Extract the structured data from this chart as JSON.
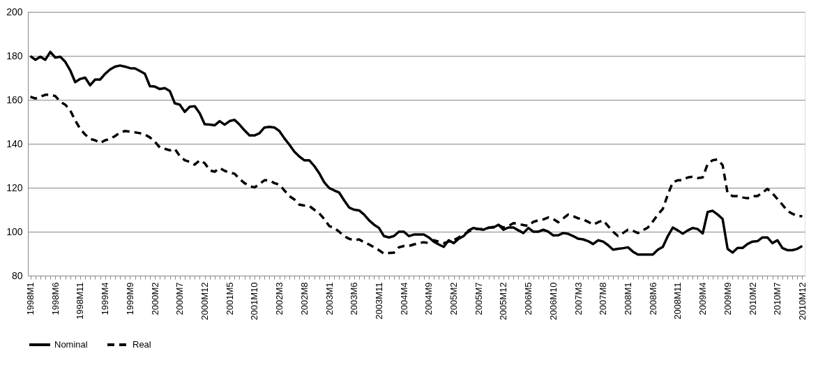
{
  "chart_data": {
    "type": "line",
    "categories": [
      "1998M1",
      null,
      null,
      null,
      null,
      "1998M6",
      null,
      null,
      null,
      null,
      "1998M11",
      null,
      null,
      null,
      null,
      "1999M4",
      null,
      null,
      null,
      null,
      "1999M9",
      null,
      null,
      null,
      null,
      "2000M2",
      null,
      null,
      null,
      null,
      "2000M7",
      null,
      null,
      null,
      null,
      "2000M12",
      null,
      null,
      null,
      null,
      "2001M5",
      null,
      null,
      null,
      null,
      "2001M10",
      null,
      null,
      null,
      null,
      "2002M3",
      null,
      null,
      null,
      null,
      "2002M8",
      null,
      null,
      null,
      null,
      "2003M1",
      null,
      null,
      null,
      null,
      "2003M6",
      null,
      null,
      null,
      null,
      "2003M11",
      null,
      null,
      null,
      null,
      "2004M4",
      null,
      null,
      null,
      null,
      "2004M9",
      null,
      null,
      null,
      null,
      "2005M2",
      null,
      null,
      null,
      null,
      "2005M7",
      null,
      null,
      null,
      null,
      "2005M12",
      null,
      null,
      null,
      null,
      "2006M5",
      null,
      null,
      null,
      null,
      "2006M10",
      null,
      null,
      null,
      null,
      "2007M3",
      null,
      null,
      null,
      null,
      "2007M8",
      null,
      null,
      null,
      null,
      "2008M1",
      null,
      null,
      null,
      null,
      "2008M6",
      null,
      null,
      null,
      null,
      "2008M11",
      null,
      null,
      null,
      null,
      "2009M4",
      null,
      null,
      null,
      null,
      "2009M9",
      null,
      null,
      null,
      null,
      "2010M2",
      null,
      null,
      null,
      null,
      "2010M7",
      null,
      null,
      null,
      null,
      "2010M12"
    ],
    "series": [
      {
        "name": "Nominal",
        "color": "#000000",
        "line_style": "solid",
        "values": [
          179.9,
          178.2,
          179.6,
          178.2,
          181.8,
          179.2,
          179.6,
          177.3,
          173.4,
          168,
          169.5,
          170.1,
          166.6,
          169.2,
          169.2,
          171.8,
          173.8,
          175.1,
          175.6,
          175.1,
          174.4,
          174.3,
          173.1,
          171.8,
          166.2,
          166,
          164.9,
          165.3,
          164,
          158.4,
          157.8,
          154.5,
          156.8,
          157.1,
          153.9,
          148.9,
          148.7,
          148.4,
          150.3,
          148.7,
          150.3,
          150.9,
          148.7,
          146.1,
          143.8,
          143.8,
          144.8,
          147.4,
          147.7,
          147.4,
          145.8,
          142.5,
          139.6,
          136.4,
          134.2,
          132.5,
          132.5,
          129.9,
          126.6,
          122.5,
          119.9,
          118.8,
          117.8,
          114.3,
          111,
          110,
          109.7,
          107.8,
          105.2,
          103.2,
          101.7,
          98,
          97.4,
          98,
          100,
          100,
          98,
          98.7,
          98.7,
          98.7,
          97.4,
          95.5,
          94.2,
          93.1,
          96.1,
          94.8,
          96.8,
          98,
          100.6,
          101.7,
          101.2,
          100.9,
          101.9,
          101.9,
          103.2,
          100.9,
          101.9,
          101.9,
          100.6,
          99.4,
          101.7,
          100,
          100,
          100.9,
          100,
          98.3,
          98.4,
          99.4,
          99,
          98,
          96.8,
          96.5,
          95.7,
          94.4,
          96.1,
          95.5,
          93.9,
          91.8,
          92.2,
          92.5,
          92.9,
          90.9,
          89.6,
          89.6,
          89.6,
          89.6,
          91.8,
          93.1,
          98,
          101.9,
          100.6,
          99.1,
          100.6,
          101.7,
          101.2,
          99.2,
          109,
          109.5,
          107.8,
          105.8,
          92.2,
          90.5,
          92.6,
          92.6,
          94.4,
          95.5,
          95.7,
          97.4,
          97.4,
          94.8,
          96.1,
          92.6,
          91.6,
          91.6,
          92.2,
          93.5
        ]
      },
      {
        "name": "Real",
        "color": "#000000",
        "line_style": "dashed",
        "values": [
          161.4,
          160.6,
          161.4,
          162.3,
          162.3,
          161.7,
          159.1,
          157.8,
          155.2,
          150.6,
          146.8,
          144.2,
          142.2,
          141.6,
          140.3,
          141.6,
          142.2,
          143.5,
          145.1,
          145.8,
          145.5,
          145.2,
          144.8,
          144.2,
          142.9,
          140.9,
          138.3,
          137.7,
          137,
          137.7,
          134.4,
          132.5,
          131.8,
          130.5,
          132.5,
          131.2,
          127.9,
          127.3,
          129,
          127.7,
          126.9,
          126.4,
          124,
          122.1,
          120.8,
          120.1,
          121.7,
          123.4,
          123.4,
          122.1,
          121.4,
          118.8,
          116.2,
          114.7,
          112.3,
          111.9,
          111.7,
          110,
          108.4,
          105.8,
          102.6,
          101.7,
          100,
          98,
          96.8,
          96.1,
          96.5,
          95.2,
          94.2,
          92.9,
          91.6,
          90,
          90.3,
          90.5,
          92.9,
          93.5,
          93.5,
          94.2,
          94.8,
          95.2,
          94.8,
          96.1,
          95.5,
          94.8,
          95.5,
          96.1,
          97.4,
          98.7,
          100,
          101.2,
          101.2,
          101.2,
          101.7,
          102.2,
          103,
          101.9,
          102.6,
          103.9,
          103.5,
          103,
          102.6,
          104.5,
          105.2,
          105.6,
          106.5,
          105.8,
          104.3,
          106.1,
          107.8,
          107.1,
          106.1,
          105.6,
          104.5,
          103.2,
          104.3,
          105.2,
          102.6,
          100,
          98,
          99.4,
          100.9,
          100.4,
          99.4,
          100.6,
          101.9,
          104.7,
          107.8,
          110.4,
          116.9,
          122.5,
          123.4,
          123.4,
          124.7,
          125,
          124.4,
          124.7,
          130.8,
          132.5,
          132.9,
          130.3,
          117.5,
          116.2,
          116.2,
          115.6,
          115.2,
          116.2,
          116.2,
          117.8,
          119.5,
          117.5,
          114.9,
          112.3,
          109.5,
          108.2,
          107.1,
          107.1
        ]
      }
    ],
    "ylim": [
      80,
      200
    ],
    "yticks": [
      80,
      100,
      120,
      140,
      160,
      180,
      200
    ],
    "grid": "y",
    "legend": "bottom"
  }
}
